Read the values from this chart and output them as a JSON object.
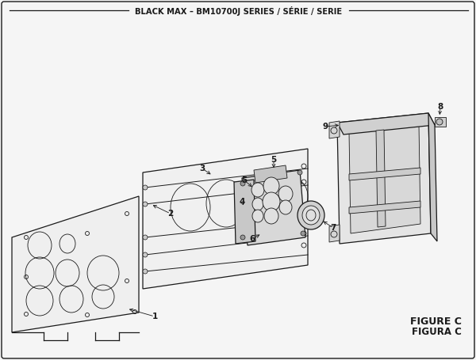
{
  "title": "BLACK MAX – BM10700J SERIES / SÉRIE / SERIE",
  "figure_label": "FIGURE C",
  "figura_label": "FIGURA C",
  "bg_color": "#f5f5f5",
  "line_color": "#1a1a1a",
  "lw_main": 0.9,
  "lw_thin": 0.6
}
